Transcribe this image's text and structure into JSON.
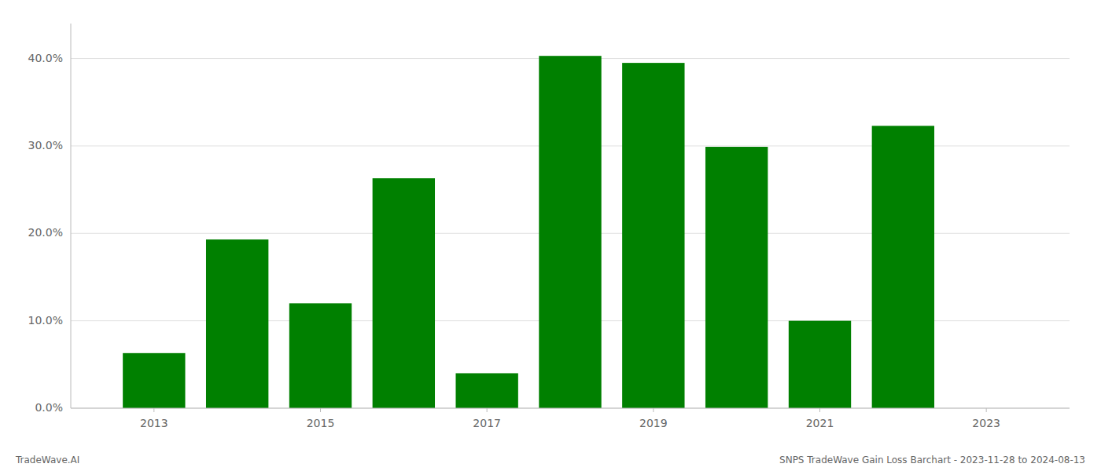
{
  "chart_data": {
    "type": "bar",
    "x": [
      2013,
      2014,
      2015,
      2016,
      2017,
      2018,
      2019,
      2020,
      2021,
      2022
    ],
    "values": [
      0.063,
      0.193,
      0.12,
      0.263,
      0.04,
      0.403,
      0.395,
      0.299,
      0.1,
      0.323
    ],
    "color": "#008000",
    "xlim": [
      2012.0,
      2024.0
    ],
    "xticks": [
      2013,
      2015,
      2017,
      2019,
      2021,
      2023
    ],
    "ylim": [
      0,
      0.44
    ],
    "yticks": [
      {
        "value": 0.0,
        "label": "0.0%"
      },
      {
        "value": 0.1,
        "label": "10.0%"
      },
      {
        "value": 0.2,
        "label": "20.0%"
      },
      {
        "value": 0.3,
        "label": "30.0%"
      },
      {
        "value": 0.4,
        "label": "40.0%"
      }
    ],
    "grid": true,
    "annotations": [
      "TradeWave.AI",
      "SNPS TradeWave Gain Loss Barchart - 2023-11-28 to 2024-08-13"
    ]
  }
}
